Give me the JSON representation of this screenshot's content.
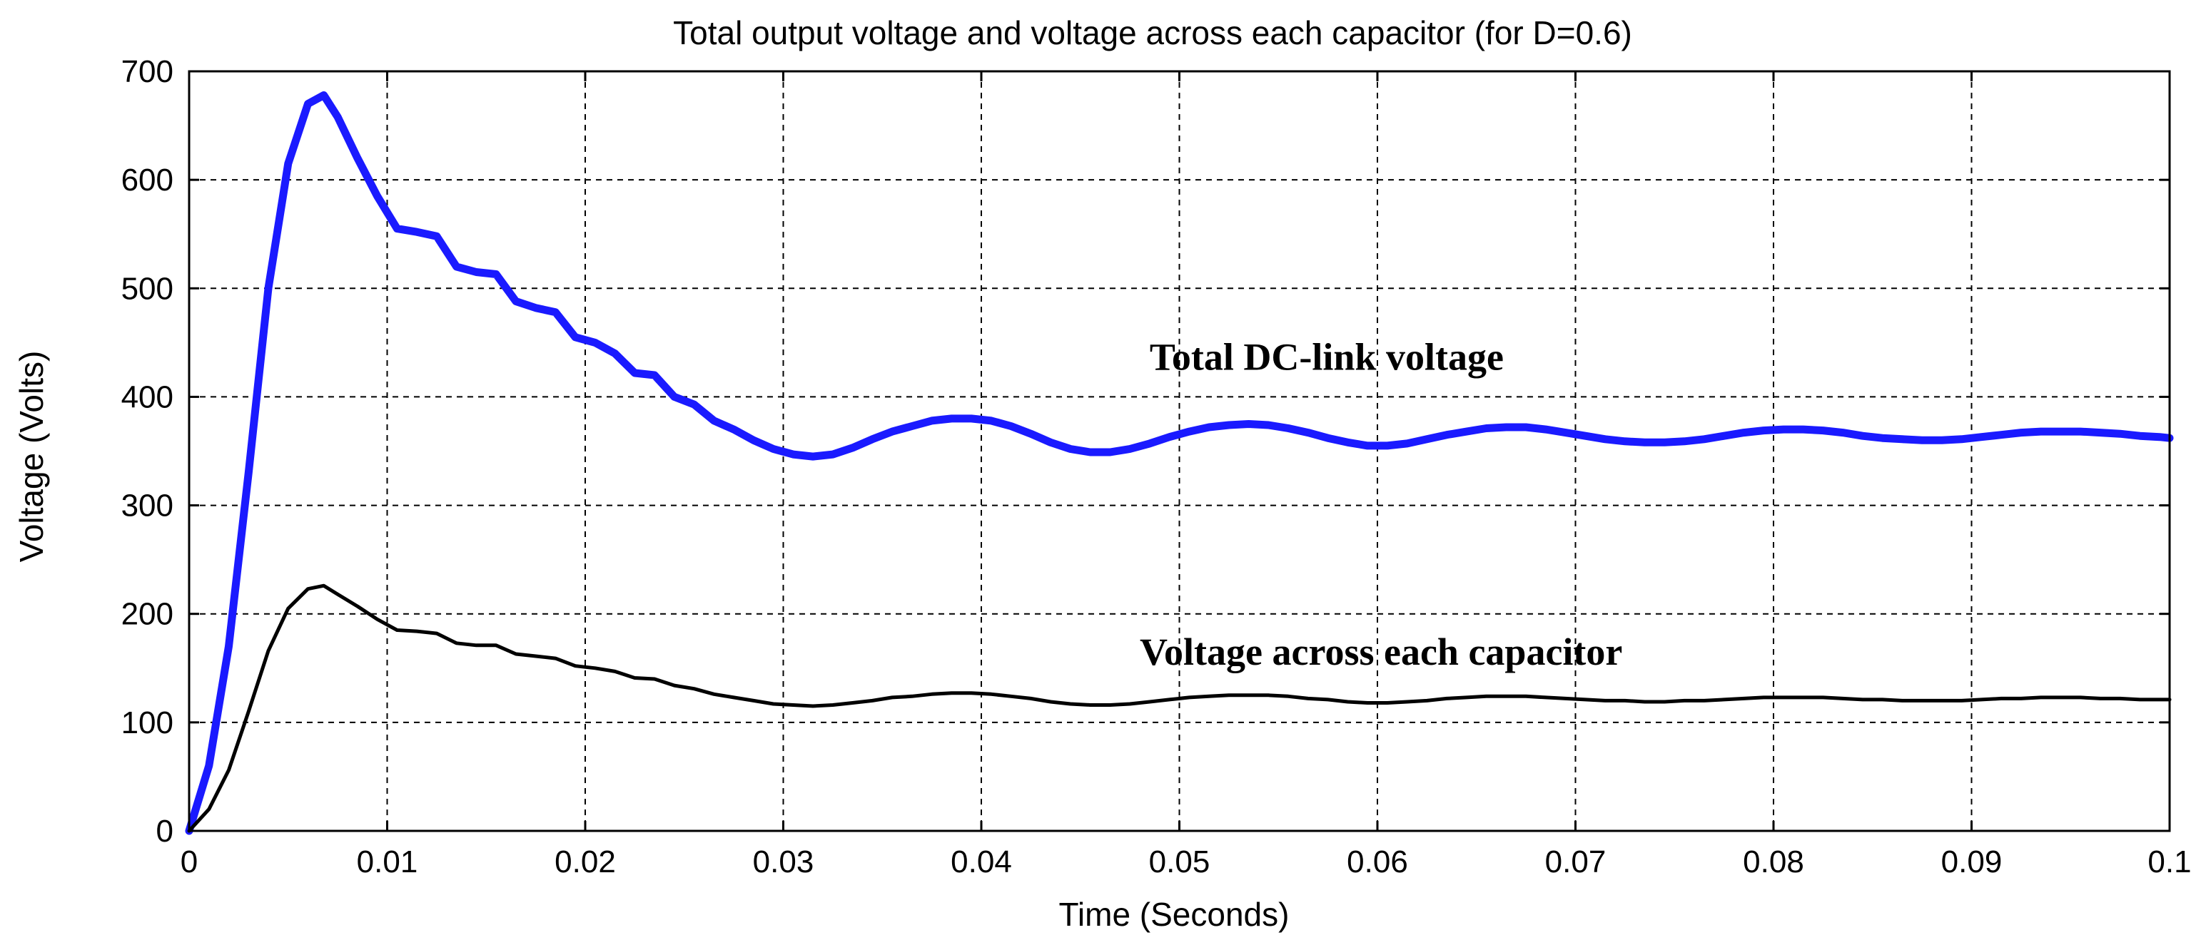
{
  "chart_data": {
    "type": "line",
    "title": "Total output voltage and voltage across each capacitor (for D=0.6)",
    "xlabel": "Time (Seconds)",
    "ylabel": "Voltage (Volts)",
    "xlim": [
      0,
      0.1
    ],
    "ylim": [
      0,
      700
    ],
    "x_ticks": [
      0,
      0.01,
      0.02,
      0.03,
      0.04,
      0.05,
      0.06,
      0.07,
      0.08,
      0.09,
      0.1
    ],
    "x_tick_labels": [
      "0",
      "0.01",
      "0.02",
      "0.03",
      "0.04",
      "0.05",
      "0.06",
      "0.07",
      "0.08",
      "0.09",
      "0.1"
    ],
    "y_ticks": [
      0,
      100,
      200,
      300,
      400,
      500,
      600,
      700
    ],
    "y_tick_labels": [
      "0",
      "100",
      "200",
      "300",
      "400",
      "500",
      "600",
      "700"
    ],
    "grid": true,
    "annotations": [
      {
        "text": "Total DC-link voltage",
        "x": 0.0485,
        "y": 425
      },
      {
        "text": "Voltage across each capacitor",
        "x": 0.048,
        "y": 153
      }
    ],
    "series": [
      {
        "color": "#1a1aff",
        "line_width": "thick",
        "x": [
          0,
          0.001,
          0.002,
          0.003,
          0.004,
          0.005,
          0.006,
          0.0068,
          0.0075,
          0.0085,
          0.0095,
          0.0105,
          0.0115,
          0.0125,
          0.0135,
          0.0145,
          0.0155,
          0.0165,
          0.0175,
          0.0185,
          0.0195,
          0.0205,
          0.0215,
          0.0225,
          0.0235,
          0.0245,
          0.0255,
          0.0265,
          0.0275,
          0.0285,
          0.0295,
          0.0305,
          0.0315,
          0.0325,
          0.0335,
          0.0345,
          0.0355,
          0.0365,
          0.0375,
          0.0385,
          0.0395,
          0.0405,
          0.0415,
          0.0425,
          0.0435,
          0.0445,
          0.0455,
          0.0465,
          0.0475,
          0.0485,
          0.0495,
          0.0505,
          0.0515,
          0.0525,
          0.0535,
          0.0545,
          0.0555,
          0.0565,
          0.0575,
          0.0585,
          0.0595,
          0.0605,
          0.0615,
          0.0625,
          0.0635,
          0.0645,
          0.0655,
          0.0665,
          0.0675,
          0.0685,
          0.0695,
          0.0705,
          0.0715,
          0.0725,
          0.0735,
          0.0745,
          0.0755,
          0.0765,
          0.0775,
          0.0785,
          0.0795,
          0.0805,
          0.0815,
          0.0825,
          0.0835,
          0.0845,
          0.0855,
          0.0865,
          0.0875,
          0.0885,
          0.0895,
          0.0905,
          0.0915,
          0.0925,
          0.0935,
          0.0945,
          0.0955,
          0.0965,
          0.0975,
          0.0985,
          0.0995,
          0.1
        ],
        "y": [
          0,
          60,
          170,
          330,
          500,
          615,
          670,
          678,
          658,
          620,
          585,
          555,
          552,
          548,
          520,
          515,
          513,
          488,
          482,
          478,
          455,
          450,
          440,
          422,
          420,
          400,
          393,
          378,
          370,
          360,
          352,
          347,
          345,
          347,
          353,
          361,
          368,
          373,
          378,
          380,
          380,
          378,
          373,
          366,
          358,
          352,
          349,
          349,
          352,
          357,
          363,
          368,
          372,
          374,
          375,
          374,
          371,
          367,
          362,
          358,
          355,
          355,
          357,
          361,
          365,
          368,
          371,
          372,
          372,
          370,
          367,
          364,
          361,
          359,
          358,
          358,
          359,
          361,
          364,
          367,
          369,
          370,
          370,
          369,
          367,
          364,
          362,
          361,
          360,
          360,
          361,
          363,
          365,
          367,
          368,
          368,
          368,
          367,
          366,
          364,
          363,
          362
        ]
      },
      {
        "color": "#000000",
        "line_width": "thin",
        "x": [
          0,
          0.001,
          0.002,
          0.003,
          0.004,
          0.005,
          0.006,
          0.0068,
          0.0075,
          0.0085,
          0.0095,
          0.0105,
          0.0115,
          0.0125,
          0.0135,
          0.0145,
          0.0155,
          0.0165,
          0.0175,
          0.0185,
          0.0195,
          0.0205,
          0.0215,
          0.0225,
          0.0235,
          0.0245,
          0.0255,
          0.0265,
          0.0275,
          0.0285,
          0.0295,
          0.0305,
          0.0315,
          0.0325,
          0.0335,
          0.0345,
          0.0355,
          0.0365,
          0.0375,
          0.0385,
          0.0395,
          0.0405,
          0.0415,
          0.0425,
          0.0435,
          0.0445,
          0.0455,
          0.0465,
          0.0475,
          0.0485,
          0.0495,
          0.0505,
          0.0515,
          0.0525,
          0.0535,
          0.0545,
          0.0555,
          0.0565,
          0.0575,
          0.0585,
          0.0595,
          0.0605,
          0.0615,
          0.0625,
          0.0635,
          0.0645,
          0.0655,
          0.0665,
          0.0675,
          0.0685,
          0.0695,
          0.0705,
          0.0715,
          0.0725,
          0.0735,
          0.0745,
          0.0755,
          0.0765,
          0.0775,
          0.0785,
          0.0795,
          0.0805,
          0.0815,
          0.0825,
          0.0835,
          0.0845,
          0.0855,
          0.0865,
          0.0875,
          0.0885,
          0.0895,
          0.0905,
          0.0915,
          0.0925,
          0.0935,
          0.0945,
          0.0955,
          0.0965,
          0.0975,
          0.0985,
          0.0995,
          0.1
        ],
        "y": [
          0,
          20,
          56,
          110,
          166,
          205,
          223,
          226,
          218,
          207,
          195,
          185,
          184,
          182,
          173,
          171,
          171,
          163,
          161,
          159,
          152,
          150,
          147,
          141,
          140,
          134,
          131,
          126,
          123,
          120,
          117,
          116,
          115,
          116,
          118,
          120,
          123,
          124,
          126,
          127,
          127,
          126,
          124,
          122,
          119,
          117,
          116,
          116,
          117,
          119,
          121,
          123,
          124,
          125,
          125,
          125,
          124,
          122,
          121,
          119,
          118,
          118,
          119,
          120,
          122,
          123,
          124,
          124,
          124,
          123,
          122,
          121,
          120,
          120,
          119,
          119,
          120,
          120,
          121,
          122,
          123,
          123,
          123,
          123,
          122,
          121,
          121,
          120,
          120,
          120,
          120,
          121,
          122,
          122,
          123,
          123,
          123,
          122,
          122,
          121,
          121,
          121
        ]
      }
    ]
  }
}
